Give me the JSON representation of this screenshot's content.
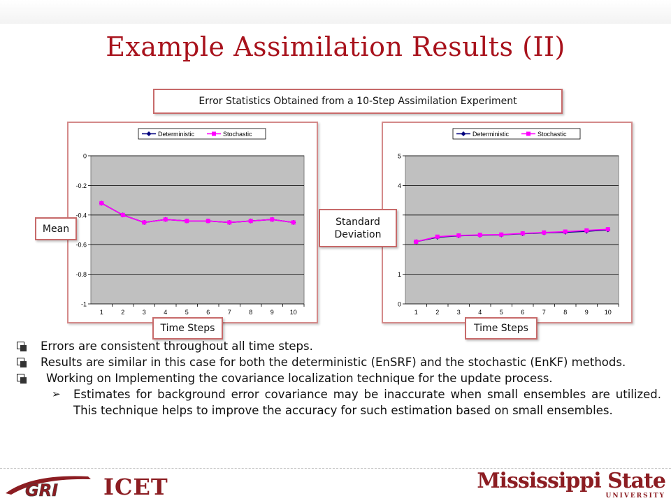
{
  "slide": {
    "title": "Example Assimilation Results (II)",
    "subtitle_box": "Error Statistics Obtained from a 10-Step Assimilation Experiment",
    "mean_label": "Mean",
    "std_label_1": "Standard",
    "std_label_2": "Deviation",
    "time_steps_left": "Time Steps",
    "time_steps_right": "Time Steps",
    "bullets": [
      "Errors are consistent throughout all time steps.",
      "Results are similar in this case for both the deterministic (EnSRF) and the stochastic (EnKF) methods.",
      "Working on Implementing the covariance localization technique for the update process."
    ],
    "sub_bullet": "Estimates for background error covariance may be inaccurate when small ensembles are utilized. This technique helps to improve the accuracy for such estimation based on small ensembles.",
    "logos": {
      "gri": "GRI",
      "icet": "ICET",
      "msu_main": "Mississippi State",
      "msu_sub": "UNIVERSITY"
    },
    "colors": {
      "title": "#a8121c",
      "deterministic": "#00007f",
      "stochastic": "#ff00ff",
      "plot_area": "#c0c0c0"
    }
  },
  "chart_data": [
    {
      "type": "line",
      "title": "",
      "xlabel": "",
      "ylabel": "",
      "x": [
        1,
        2,
        3,
        4,
        5,
        6,
        7,
        8,
        9,
        10
      ],
      "ylim": [
        -1,
        0
      ],
      "yticks": [
        0,
        -0.2,
        -0.4,
        -0.6,
        -0.8,
        -1
      ],
      "ytick_labels": [
        "0",
        "-0.2",
        "-0.4",
        "-0.6",
        "-0.8",
        "-1"
      ],
      "grid": true,
      "legend": "top",
      "series": [
        {
          "name": "Deterministic",
          "values": [
            -0.32,
            -0.4,
            -0.45,
            -0.43,
            -0.44,
            -0.44,
            -0.45,
            -0.44,
            -0.43,
            -0.45
          ]
        },
        {
          "name": "Stochastic",
          "values": [
            -0.32,
            -0.4,
            -0.45,
            -0.43,
            -0.44,
            -0.44,
            -0.45,
            -0.44,
            -0.43,
            -0.45
          ]
        }
      ]
    },
    {
      "type": "line",
      "title": "",
      "xlabel": "",
      "ylabel": "",
      "x": [
        1,
        2,
        3,
        4,
        5,
        6,
        7,
        8,
        9,
        10
      ],
      "ylim": [
        0,
        5
      ],
      "yticks": [
        5,
        4,
        3,
        2,
        1,
        0
      ],
      "ytick_labels": [
        "5",
        "4",
        "",
        "",
        "1",
        "0"
      ],
      "grid": true,
      "legend": "top",
      "series": [
        {
          "name": "Deterministic",
          "values": [
            2.1,
            2.25,
            2.3,
            2.32,
            2.33,
            2.37,
            2.4,
            2.42,
            2.45,
            2.5
          ]
        },
        {
          "name": "Stochastic",
          "values": [
            2.1,
            2.27,
            2.31,
            2.33,
            2.34,
            2.38,
            2.41,
            2.44,
            2.48,
            2.52
          ]
        }
      ]
    }
  ]
}
